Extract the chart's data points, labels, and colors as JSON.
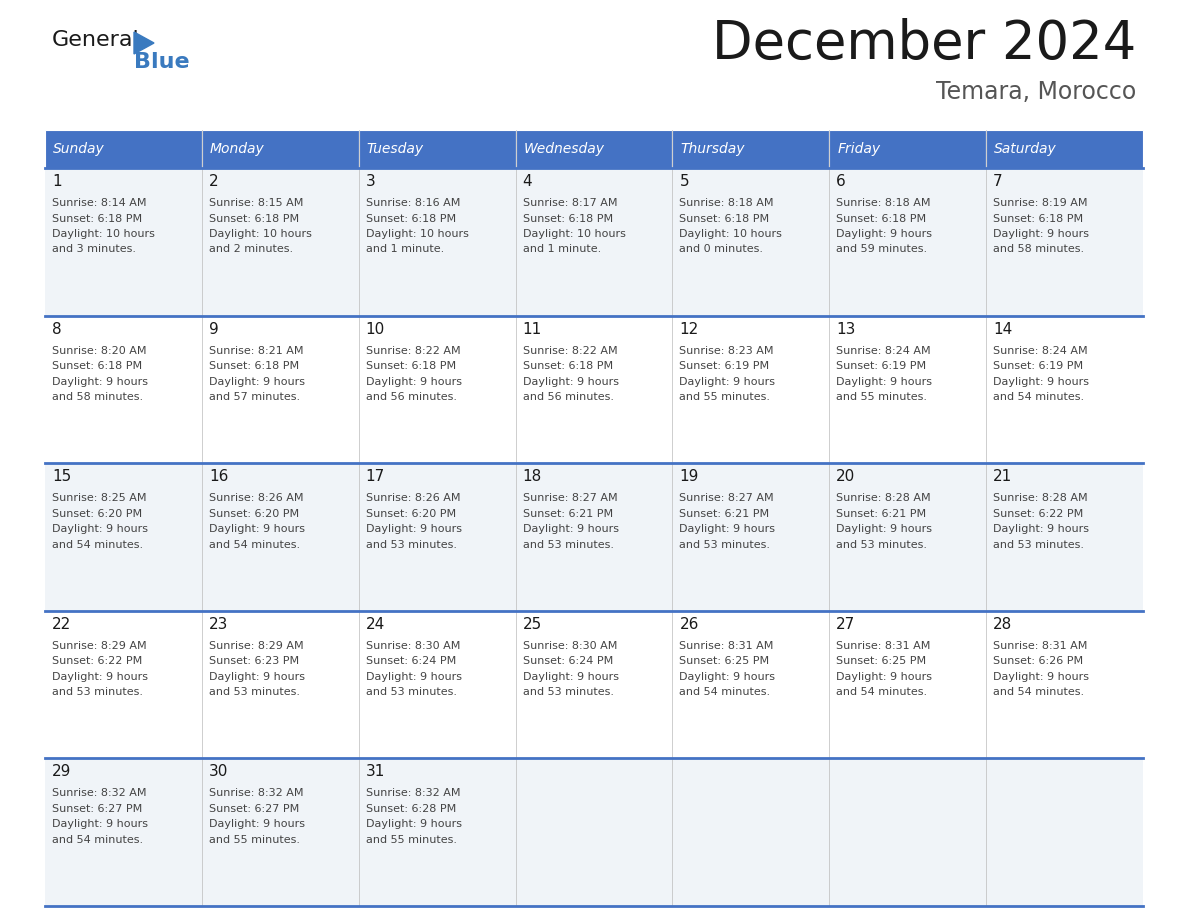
{
  "title": "December 2024",
  "subtitle": "Temara, Morocco",
  "header_bg_color": "#4472C4",
  "header_text_color": "#FFFFFF",
  "day_names": [
    "Sunday",
    "Monday",
    "Tuesday",
    "Wednesday",
    "Thursday",
    "Friday",
    "Saturday"
  ],
  "title_font_size": 38,
  "subtitle_font_size": 17,
  "divider_color": "#4472C4",
  "logo_general_color": "#1a1a1a",
  "logo_blue_color": "#3a7abf",
  "logo_triangle_color": "#3a7abf",
  "cell_bg_odd": "#f0f4f8",
  "cell_bg_even": "#ffffff",
  "weeks": [
    [
      {
        "day": "1",
        "sunrise": "8:14 AM",
        "sunset": "6:18 PM",
        "daylight_line1": "10 hours",
        "daylight_line2": "and 3 minutes."
      },
      {
        "day": "2",
        "sunrise": "8:15 AM",
        "sunset": "6:18 PM",
        "daylight_line1": "10 hours",
        "daylight_line2": "and 2 minutes."
      },
      {
        "day": "3",
        "sunrise": "8:16 AM",
        "sunset": "6:18 PM",
        "daylight_line1": "10 hours",
        "daylight_line2": "and 1 minute."
      },
      {
        "day": "4",
        "sunrise": "8:17 AM",
        "sunset": "6:18 PM",
        "daylight_line1": "10 hours",
        "daylight_line2": "and 1 minute."
      },
      {
        "day": "5",
        "sunrise": "8:18 AM",
        "sunset": "6:18 PM",
        "daylight_line1": "10 hours",
        "daylight_line2": "and 0 minutes."
      },
      {
        "day": "6",
        "sunrise": "8:18 AM",
        "sunset": "6:18 PM",
        "daylight_line1": "9 hours",
        "daylight_line2": "and 59 minutes."
      },
      {
        "day": "7",
        "sunrise": "8:19 AM",
        "sunset": "6:18 PM",
        "daylight_line1": "9 hours",
        "daylight_line2": "and 58 minutes."
      }
    ],
    [
      {
        "day": "8",
        "sunrise": "8:20 AM",
        "sunset": "6:18 PM",
        "daylight_line1": "9 hours",
        "daylight_line2": "and 58 minutes."
      },
      {
        "day": "9",
        "sunrise": "8:21 AM",
        "sunset": "6:18 PM",
        "daylight_line1": "9 hours",
        "daylight_line2": "and 57 minutes."
      },
      {
        "day": "10",
        "sunrise": "8:22 AM",
        "sunset": "6:18 PM",
        "daylight_line1": "9 hours",
        "daylight_line2": "and 56 minutes."
      },
      {
        "day": "11",
        "sunrise": "8:22 AM",
        "sunset": "6:18 PM",
        "daylight_line1": "9 hours",
        "daylight_line2": "and 56 minutes."
      },
      {
        "day": "12",
        "sunrise": "8:23 AM",
        "sunset": "6:19 PM",
        "daylight_line1": "9 hours",
        "daylight_line2": "and 55 minutes."
      },
      {
        "day": "13",
        "sunrise": "8:24 AM",
        "sunset": "6:19 PM",
        "daylight_line1": "9 hours",
        "daylight_line2": "and 55 minutes."
      },
      {
        "day": "14",
        "sunrise": "8:24 AM",
        "sunset": "6:19 PM",
        "daylight_line1": "9 hours",
        "daylight_line2": "and 54 minutes."
      }
    ],
    [
      {
        "day": "15",
        "sunrise": "8:25 AM",
        "sunset": "6:20 PM",
        "daylight_line1": "9 hours",
        "daylight_line2": "and 54 minutes."
      },
      {
        "day": "16",
        "sunrise": "8:26 AM",
        "sunset": "6:20 PM",
        "daylight_line1": "9 hours",
        "daylight_line2": "and 54 minutes."
      },
      {
        "day": "17",
        "sunrise": "8:26 AM",
        "sunset": "6:20 PM",
        "daylight_line1": "9 hours",
        "daylight_line2": "and 53 minutes."
      },
      {
        "day": "18",
        "sunrise": "8:27 AM",
        "sunset": "6:21 PM",
        "daylight_line1": "9 hours",
        "daylight_line2": "and 53 minutes."
      },
      {
        "day": "19",
        "sunrise": "8:27 AM",
        "sunset": "6:21 PM",
        "daylight_line1": "9 hours",
        "daylight_line2": "and 53 minutes."
      },
      {
        "day": "20",
        "sunrise": "8:28 AM",
        "sunset": "6:21 PM",
        "daylight_line1": "9 hours",
        "daylight_line2": "and 53 minutes."
      },
      {
        "day": "21",
        "sunrise": "8:28 AM",
        "sunset": "6:22 PM",
        "daylight_line1": "9 hours",
        "daylight_line2": "and 53 minutes."
      }
    ],
    [
      {
        "day": "22",
        "sunrise": "8:29 AM",
        "sunset": "6:22 PM",
        "daylight_line1": "9 hours",
        "daylight_line2": "and 53 minutes."
      },
      {
        "day": "23",
        "sunrise": "8:29 AM",
        "sunset": "6:23 PM",
        "daylight_line1": "9 hours",
        "daylight_line2": "and 53 minutes."
      },
      {
        "day": "24",
        "sunrise": "8:30 AM",
        "sunset": "6:24 PM",
        "daylight_line1": "9 hours",
        "daylight_line2": "and 53 minutes."
      },
      {
        "day": "25",
        "sunrise": "8:30 AM",
        "sunset": "6:24 PM",
        "daylight_line1": "9 hours",
        "daylight_line2": "and 53 minutes."
      },
      {
        "day": "26",
        "sunrise": "8:31 AM",
        "sunset": "6:25 PM",
        "daylight_line1": "9 hours",
        "daylight_line2": "and 54 minutes."
      },
      {
        "day": "27",
        "sunrise": "8:31 AM",
        "sunset": "6:25 PM",
        "daylight_line1": "9 hours",
        "daylight_line2": "and 54 minutes."
      },
      {
        "day": "28",
        "sunrise": "8:31 AM",
        "sunset": "6:26 PM",
        "daylight_line1": "9 hours",
        "daylight_line2": "and 54 minutes."
      }
    ],
    [
      {
        "day": "29",
        "sunrise": "8:32 AM",
        "sunset": "6:27 PM",
        "daylight_line1": "9 hours",
        "daylight_line2": "and 54 minutes."
      },
      {
        "day": "30",
        "sunrise": "8:32 AM",
        "sunset": "6:27 PM",
        "daylight_line1": "9 hours",
        "daylight_line2": "and 55 minutes."
      },
      {
        "day": "31",
        "sunrise": "8:32 AM",
        "sunset": "6:28 PM",
        "daylight_line1": "9 hours",
        "daylight_line2": "and 55 minutes."
      },
      null,
      null,
      null,
      null
    ]
  ]
}
